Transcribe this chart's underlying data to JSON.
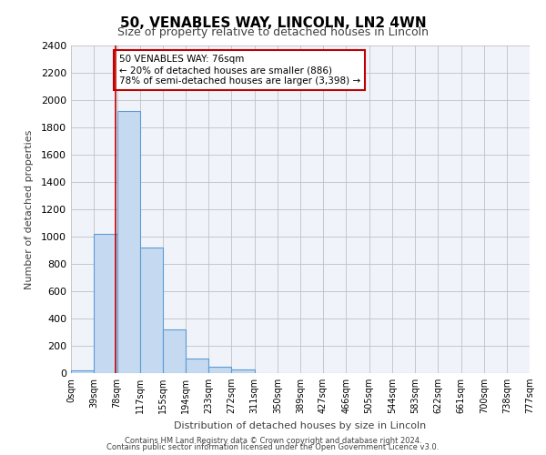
{
  "title": "50, VENABLES WAY, LINCOLN, LN2 4WN",
  "subtitle": "Size of property relative to detached houses in Lincoln",
  "xlabel": "Distribution of detached houses by size in Lincoln",
  "ylabel": "Number of detached properties",
  "bin_edges": [
    0,
    39,
    78,
    117,
    155,
    194,
    233,
    272,
    311,
    350,
    389,
    427,
    466,
    505,
    544,
    583,
    622,
    661,
    700,
    738,
    777
  ],
  "bin_labels": [
    "0sqm",
    "39sqm",
    "78sqm",
    "117sqm",
    "155sqm",
    "194sqm",
    "233sqm",
    "272sqm",
    "311sqm",
    "350sqm",
    "389sqm",
    "427sqm",
    "466sqm",
    "505sqm",
    "544sqm",
    "583sqm",
    "622sqm",
    "661sqm",
    "700sqm",
    "738sqm",
    "777sqm"
  ],
  "counts": [
    20,
    1020,
    1920,
    920,
    320,
    105,
    45,
    25,
    0,
    0,
    0,
    0,
    0,
    0,
    0,
    0,
    0,
    0,
    0,
    0
  ],
  "bar_color": "#c5d9f0",
  "bar_edge_color": "#5b9bd5",
  "red_line_x": 76,
  "annotation_text": "50 VENABLES WAY: 76sqm\n← 20% of detached houses are smaller (886)\n78% of semi-detached houses are larger (3,398) →",
  "annotation_box_edge_color": "#c00000",
  "ylim": [
    0,
    2400
  ],
  "yticks": [
    0,
    200,
    400,
    600,
    800,
    1000,
    1200,
    1400,
    1600,
    1800,
    2000,
    2200,
    2400
  ],
  "grid_color": "#c0c0c0",
  "background_color": "#f0f4fa",
  "footer_line1": "Contains HM Land Registry data © Crown copyright and database right 2024.",
  "footer_line2": "Contains public sector information licensed under the Open Government Licence v3.0."
}
